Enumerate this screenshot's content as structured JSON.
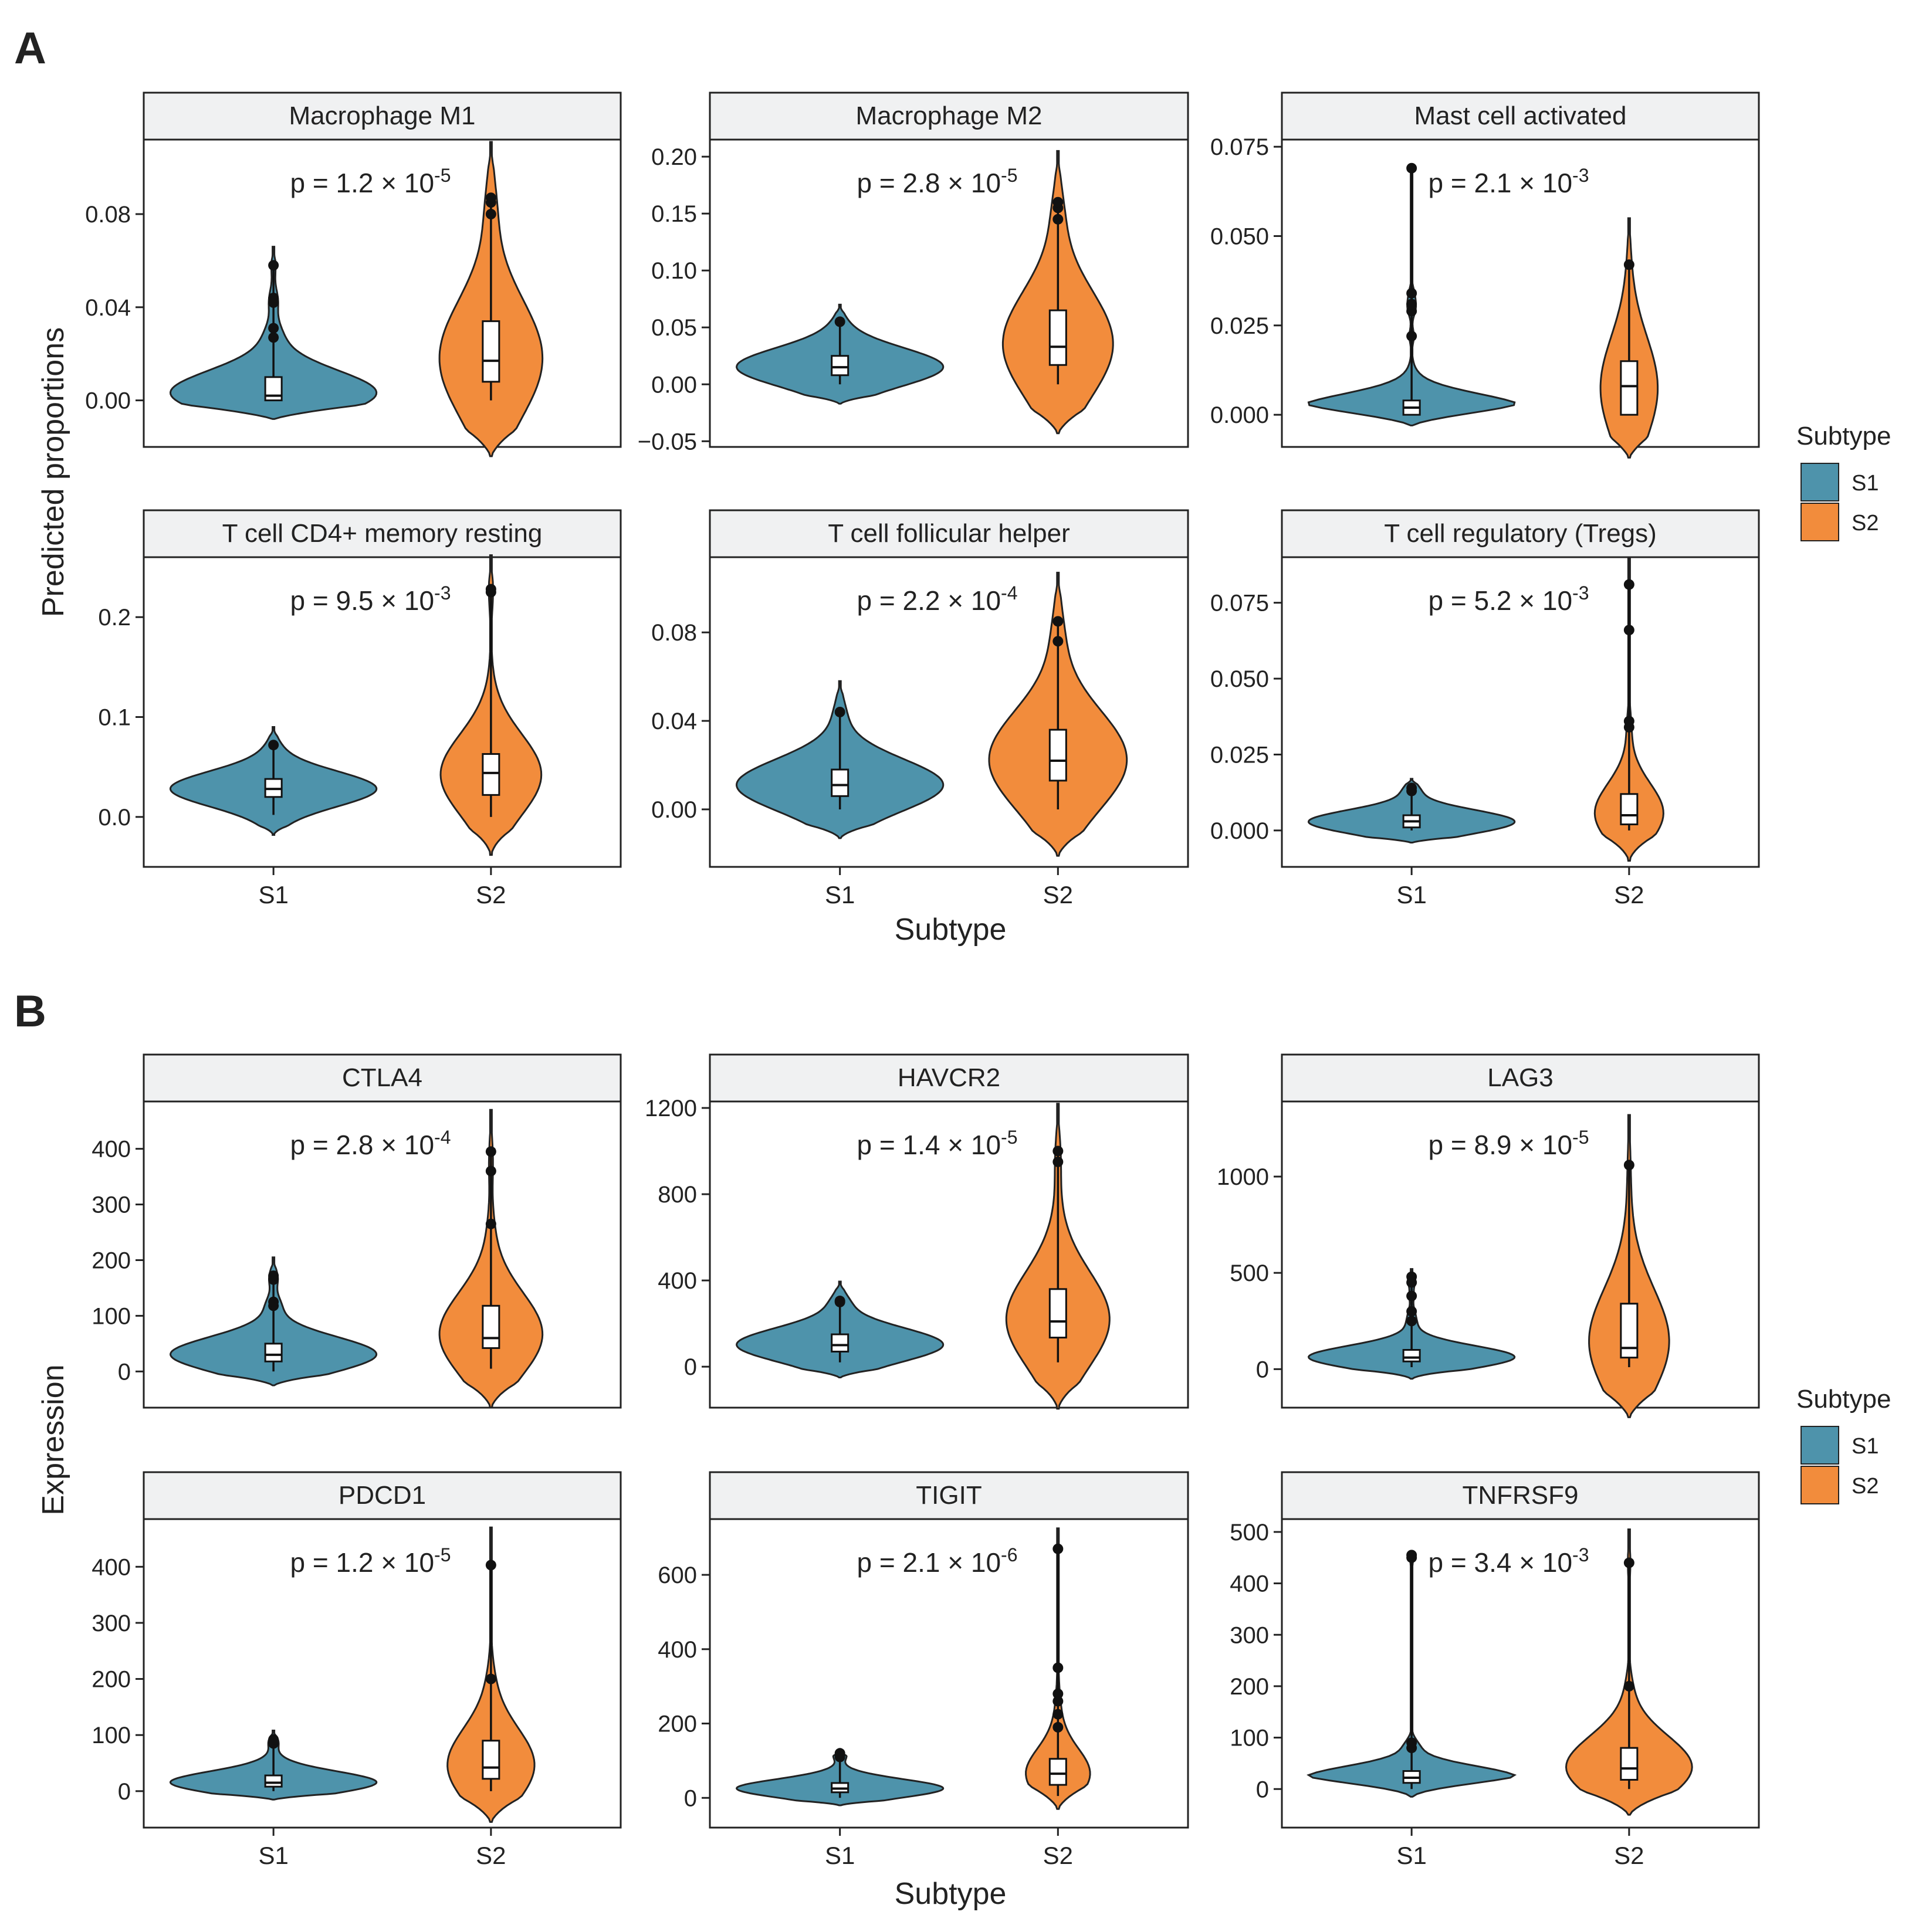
{
  "figure": {
    "panel_letters": [
      "A",
      "B"
    ],
    "y_titles": [
      "Predicted proportions",
      "Expression"
    ],
    "x_titles": [
      "Subtype",
      "Subtype"
    ],
    "legend": {
      "title": "Subtype",
      "items": [
        {
          "label": "S1",
          "color": "#4e93ab"
        },
        {
          "label": "S2",
          "color": "#f28c3c"
        }
      ]
    }
  },
  "colors": {
    "S1": "#4e93ab",
    "S2": "#f28c3c",
    "strip": "#f0f1f2"
  },
  "chart_data": [
    {
      "type": "violin",
      "title": "Macrophage M1",
      "p_base": "p = 1.2 × 10",
      "p_exp": "-5",
      "ylim": [
        -0.02,
        0.112
      ],
      "ticks": [
        0.0,
        0.04,
        0.08
      ],
      "tick_labels": [
        "0.00",
        "0.04",
        "0.08"
      ],
      "categories": [
        "S1",
        "S2"
      ],
      "xlabel": "Subtype",
      "ylabel": "Predicted proportions",
      "series": [
        {
          "name": "S1",
          "min": -0.008,
          "max": 0.066,
          "median": 0.002,
          "q1": 0.0,
          "q3": 0.01,
          "whisker_lo": 0.0,
          "whisker_hi": 0.024,
          "outliers": [
            0.027,
            0.031,
            0.042,
            0.044,
            0.058
          ],
          "maxw": 0.9
        },
        {
          "name": "S2",
          "min": -0.024,
          "max": 0.111,
          "median": 0.017,
          "q1": 0.008,
          "q3": 0.034,
          "whisker_lo": 0.0,
          "whisker_hi": 0.075,
          "outliers": [
            0.08,
            0.085,
            0.087
          ],
          "maxw": 0.45
        }
      ]
    },
    {
      "type": "violin",
      "title": "Macrophage M2",
      "p_base": "p = 2.8 × 10",
      "p_exp": "-5",
      "ylim": [
        -0.055,
        0.215
      ],
      "ticks": [
        -0.05,
        0.0,
        0.05,
        0.1,
        0.15,
        0.2
      ],
      "tick_labels": [
        "−0.05",
        "0.00",
        "0.05",
        "0.10",
        "0.15",
        "0.20"
      ],
      "categories": [
        "S1",
        "S2"
      ],
      "xlabel": "Subtype",
      "ylabel": "",
      "series": [
        {
          "name": "S1",
          "min": -0.017,
          "max": 0.07,
          "median": 0.015,
          "q1": 0.008,
          "q3": 0.025,
          "whisker_lo": 0.0,
          "whisker_hi": 0.04,
          "outliers": [
            0.055
          ],
          "maxw": 0.9
        },
        {
          "name": "S2",
          "min": -0.043,
          "max": 0.205,
          "median": 0.033,
          "q1": 0.017,
          "q3": 0.065,
          "whisker_lo": 0.0,
          "whisker_hi": 0.12,
          "outliers": [
            0.145,
            0.155,
            0.16
          ],
          "maxw": 0.48
        }
      ]
    },
    {
      "type": "violin",
      "title": "Mast cell activated",
      "p_base": "p = 2.1 × 10",
      "p_exp": "-3",
      "ylim": [
        -0.009,
        0.077
      ],
      "ticks": [
        0.0,
        0.025,
        0.05,
        0.075
      ],
      "tick_labels": [
        "0.000",
        "0.025",
        "0.050",
        "0.075"
      ],
      "categories": [
        "S1",
        "S2"
      ],
      "xlabel": "Subtype",
      "ylabel": "",
      "series": [
        {
          "name": "S1",
          "min": -0.003,
          "max": 0.07,
          "median": 0.002,
          "q1": 0.0,
          "q3": 0.004,
          "whisker_lo": 0.0,
          "whisker_hi": 0.01,
          "outliers": [
            0.022,
            0.029,
            0.031,
            0.034,
            0.069
          ],
          "maxw": 0.9
        },
        {
          "name": "S2",
          "min": -0.012,
          "max": 0.055,
          "median": 0.008,
          "q1": 0.0,
          "q3": 0.015,
          "whisker_lo": 0.0,
          "whisker_hi": 0.034,
          "outliers": [
            0.042
          ],
          "maxw": 0.25
        }
      ]
    },
    {
      "type": "violin",
      "title": "T cell CD4+ memory resting",
      "p_base": "p = 9.5 × 10",
      "p_exp": "-3",
      "ylim": [
        -0.05,
        0.26
      ],
      "ticks": [
        0.0,
        0.1,
        0.2
      ],
      "tick_labels": [
        "0.0",
        "0.1",
        "0.2"
      ],
      "categories": [
        "S1",
        "S2"
      ],
      "xlabel": "Subtype",
      "ylabel": "Predicted proportions",
      "series": [
        {
          "name": "S1",
          "min": -0.018,
          "max": 0.09,
          "median": 0.028,
          "q1": 0.02,
          "q3": 0.038,
          "whisker_lo": 0.002,
          "whisker_hi": 0.06,
          "outliers": [
            0.072
          ],
          "maxw": 0.9
        },
        {
          "name": "S2",
          "min": -0.038,
          "max": 0.262,
          "median": 0.044,
          "q1": 0.022,
          "q3": 0.063,
          "whisker_lo": 0.0,
          "whisker_hi": 0.108,
          "outliers": [
            0.225,
            0.228
          ],
          "maxw": 0.44
        }
      ]
    },
    {
      "type": "violin",
      "title": "T cell follicular helper",
      "p_base": "p = 2.2 × 10",
      "p_exp": "-4",
      "ylim": [
        -0.026,
        0.114
      ],
      "ticks": [
        0.0,
        0.04,
        0.08
      ],
      "tick_labels": [
        "0.00",
        "0.04",
        "0.08"
      ],
      "categories": [
        "S1",
        "S2"
      ],
      "xlabel": "Subtype",
      "ylabel": "",
      "series": [
        {
          "name": "S1",
          "min": -0.013,
          "max": 0.058,
          "median": 0.011,
          "q1": 0.006,
          "q3": 0.018,
          "whisker_lo": 0.0,
          "whisker_hi": 0.04,
          "outliers": [
            0.044
          ],
          "maxw": 0.9
        },
        {
          "name": "S2",
          "min": -0.021,
          "max": 0.107,
          "median": 0.022,
          "q1": 0.013,
          "q3": 0.036,
          "whisker_lo": 0.0,
          "whisker_hi": 0.075,
          "outliers": [
            0.076,
            0.085
          ],
          "maxw": 0.6
        }
      ]
    },
    {
      "type": "violin",
      "title": "T cell regulatory (Tregs)",
      "p_base": "p = 5.2 × 10",
      "p_exp": "-3",
      "ylim": [
        -0.012,
        0.09
      ],
      "ticks": [
        0.0,
        0.025,
        0.05,
        0.075
      ],
      "tick_labels": [
        "0.000",
        "0.025",
        "0.050",
        "0.075"
      ],
      "categories": [
        "S1",
        "S2"
      ],
      "xlabel": "Subtype",
      "ylabel": "",
      "series": [
        {
          "name": "S1",
          "min": -0.004,
          "max": 0.017,
          "median": 0.003,
          "q1": 0.001,
          "q3": 0.005,
          "whisker_lo": 0.0,
          "whisker_hi": 0.012,
          "outliers": [
            0.013,
            0.014
          ],
          "maxw": 0.9
        },
        {
          "name": "S2",
          "min": -0.01,
          "max": 0.09,
          "median": 0.005,
          "q1": 0.002,
          "q3": 0.012,
          "whisker_lo": 0.0,
          "whisker_hi": 0.025,
          "outliers": [
            0.034,
            0.036,
            0.066,
            0.081
          ],
          "maxw": 0.3
        }
      ]
    },
    {
      "type": "violin",
      "title": "CTLA4",
      "p_base": "p = 2.8 × 10",
      "p_exp": "-4",
      "ylim": [
        -65,
        485
      ],
      "ticks": [
        0,
        100,
        200,
        300,
        400
      ],
      "tick_labels": [
        "0",
        "100",
        "200",
        "300",
        "400"
      ],
      "categories": [
        "S1",
        "S2"
      ],
      "xlabel": "Subtype",
      "ylabel": "Expression",
      "series": [
        {
          "name": "S1",
          "min": -25,
          "max": 205,
          "median": 30,
          "q1": 18,
          "q3": 50,
          "whisker_lo": 0,
          "whisker_hi": 100,
          "outliers": [
            118,
            125,
            165,
            172
          ],
          "maxw": 0.9
        },
        {
          "name": "S2",
          "min": -65,
          "max": 470,
          "median": 60,
          "q1": 42,
          "q3": 118,
          "whisker_lo": 5,
          "whisker_hi": 210,
          "outliers": [
            265,
            360,
            395
          ],
          "maxw": 0.45
        }
      ]
    },
    {
      "type": "violin",
      "title": "HAVCR2",
      "p_base": "p = 1.4 × 10",
      "p_exp": "-5",
      "ylim": [
        -190,
        1230
      ],
      "ticks": [
        0,
        400,
        800,
        1200
      ],
      "tick_labels": [
        "0",
        "400",
        "800",
        "1200"
      ],
      "categories": [
        "S1",
        "S2"
      ],
      "xlabel": "Subtype",
      "ylabel": "",
      "series": [
        {
          "name": "S1",
          "min": -50,
          "max": 395,
          "median": 100,
          "q1": 70,
          "q3": 150,
          "whisker_lo": 20,
          "whisker_hi": 280,
          "outliers": [
            300,
            305
          ],
          "maxw": 0.9
        },
        {
          "name": "S2",
          "min": -195,
          "max": 1220,
          "median": 210,
          "q1": 135,
          "q3": 360,
          "whisker_lo": 20,
          "whisker_hi": 700,
          "outliers": [
            950,
            1000
          ],
          "maxw": 0.45
        }
      ]
    },
    {
      "type": "violin",
      "title": "LAG3",
      "p_base": "p = 8.9 × 10",
      "p_exp": "-5",
      "ylim": [
        -200,
        1390
      ],
      "ticks": [
        0,
        500,
        1000
      ],
      "tick_labels": [
        "0",
        "500",
        "1000"
      ],
      "categories": [
        "S1",
        "S2"
      ],
      "xlabel": "Subtype",
      "ylabel": "",
      "series": [
        {
          "name": "S1",
          "min": -50,
          "max": 520,
          "median": 60,
          "q1": 40,
          "q3": 100,
          "whisker_lo": 10,
          "whisker_hi": 200,
          "outliers": [
            250,
            300,
            380,
            450,
            480
          ],
          "maxw": 0.9
        },
        {
          "name": "S2",
          "min": -250,
          "max": 1320,
          "median": 110,
          "q1": 60,
          "q3": 340,
          "whisker_lo": 10,
          "whisker_hi": 750,
          "outliers": [
            1060
          ],
          "maxw": 0.35
        }
      ]
    },
    {
      "type": "violin",
      "title": "PDCD1",
      "p_base": "p = 1.2 × 10",
      "p_exp": "-5",
      "ylim": [
        -65,
        485
      ],
      "ticks": [
        0,
        100,
        200,
        300,
        400
      ],
      "tick_labels": [
        "0",
        "100",
        "200",
        "300",
        "400"
      ],
      "categories": [
        "S1",
        "S2"
      ],
      "xlabel": "Subtype",
      "ylabel": "Expression",
      "series": [
        {
          "name": "S1",
          "min": -15,
          "max": 108,
          "median": 15,
          "q1": 8,
          "q3": 28,
          "whisker_lo": 0,
          "whisker_hi": 60,
          "outliers": [
            85,
            92
          ],
          "maxw": 0.9
        },
        {
          "name": "S2",
          "min": -55,
          "max": 470,
          "median": 42,
          "q1": 22,
          "q3": 90,
          "whisker_lo": 0,
          "whisker_hi": 180,
          "outliers": [
            200,
            403
          ],
          "maxw": 0.38
        }
      ]
    },
    {
      "type": "violin",
      "title": "TIGIT",
      "p_base": "p = 2.1 × 10",
      "p_exp": "-6",
      "ylim": [
        -80,
        750
      ],
      "ticks": [
        0,
        200,
        400,
        600
      ],
      "tick_labels": [
        "0",
        "200",
        "400",
        "600"
      ],
      "categories": [
        "S1",
        "S2"
      ],
      "xlabel": "Subtype",
      "ylabel": "",
      "series": [
        {
          "name": "S1",
          "min": -20,
          "max": 125,
          "median": 25,
          "q1": 15,
          "q3": 40,
          "whisker_lo": 0,
          "whisker_hi": 70,
          "outliers": [
            110,
            115,
            120
          ],
          "maxw": 0.9
        },
        {
          "name": "S2",
          "min": -30,
          "max": 725,
          "median": 65,
          "q1": 35,
          "q3": 105,
          "whisker_lo": 5,
          "whisker_hi": 180,
          "outliers": [
            190,
            225,
            260,
            280,
            350,
            670
          ],
          "maxw": 0.28
        }
      ]
    },
    {
      "type": "violin",
      "title": "TNFRSF9",
      "p_base": "p = 3.4 × 10",
      "p_exp": "-3",
      "ylim": [
        -75,
        525
      ],
      "ticks": [
        0,
        100,
        200,
        300,
        400,
        500
      ],
      "tick_labels": [
        "0",
        "100",
        "200",
        "300",
        "400",
        "500"
      ],
      "categories": [
        "S1",
        "S2"
      ],
      "xlabel": "Subtype",
      "ylabel": "",
      "series": [
        {
          "name": "S1",
          "min": -15,
          "max": 460,
          "median": 22,
          "q1": 12,
          "q3": 35,
          "whisker_lo": 0,
          "whisker_hi": 70,
          "outliers": [
            80,
            90,
            450,
            455
          ],
          "maxw": 0.9
        },
        {
          "name": "S2",
          "min": -50,
          "max": 505,
          "median": 40,
          "q1": 18,
          "q3": 80,
          "whisker_lo": 0,
          "whisker_hi": 145,
          "outliers": [
            200,
            440
          ],
          "maxw": 0.55
        }
      ]
    }
  ]
}
